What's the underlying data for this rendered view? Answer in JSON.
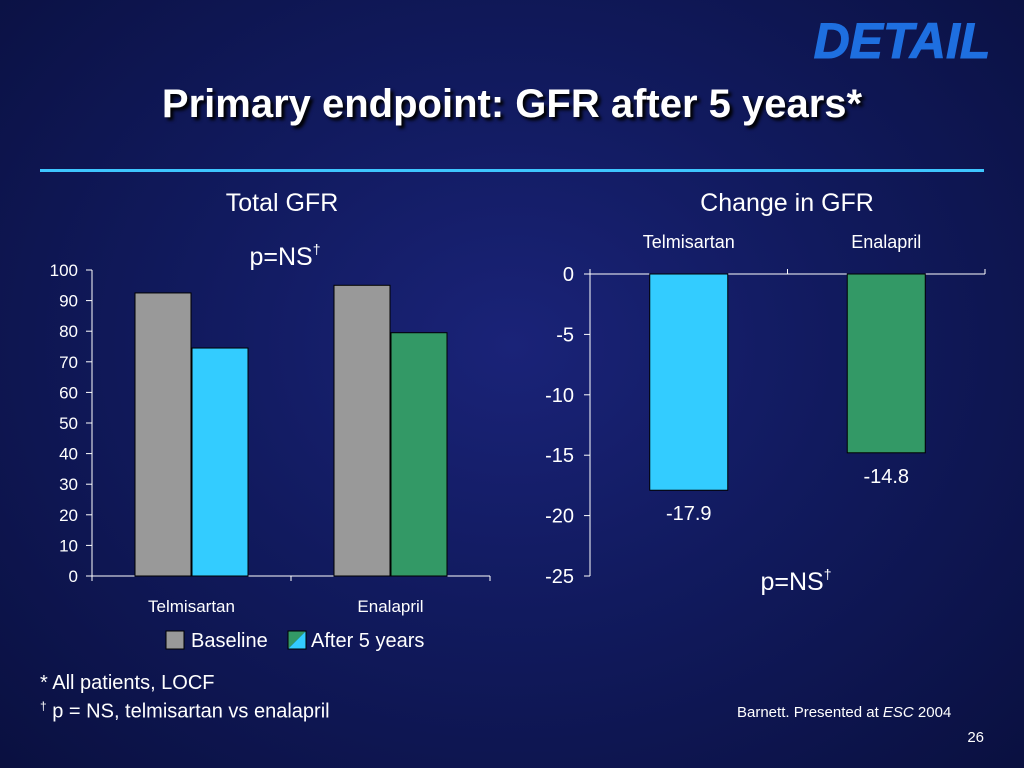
{
  "logo": {
    "text": "DETAIL"
  },
  "title": "Primary endpoint: GFR after 5 years*",
  "colors": {
    "baseline": "#999999",
    "telmisartan": "#33ccff",
    "enalapril": "#339966",
    "rule": "#3ec6ff"
  },
  "chart_data": [
    {
      "type": "bar",
      "title": "Total GFR",
      "annotation": "p=NS",
      "annotation_mark": "†",
      "categories": [
        "Telmisartan",
        "Enalapril"
      ],
      "series": [
        {
          "name": "Baseline",
          "values": [
            92.5,
            95
          ]
        },
        {
          "name": "After 5 years",
          "values": [
            74.5,
            79.5
          ]
        }
      ],
      "ylim": [
        0,
        100
      ],
      "yticks": [
        0,
        10,
        20,
        30,
        40,
        50,
        60,
        70,
        80,
        90,
        100
      ],
      "grid": false,
      "legend": "bottom"
    },
    {
      "type": "bar",
      "title": "Change in GFR",
      "annotation": "p=NS",
      "annotation_mark": "†",
      "categories": [
        "Telmisartan",
        "Enalapril"
      ],
      "values": [
        -17.9,
        -14.8
      ],
      "data_labels": [
        "-17.9",
        "-14.8"
      ],
      "ylim": [
        -25,
        0
      ],
      "yticks": [
        0,
        -5,
        -10,
        -15,
        -20,
        -25
      ],
      "category_labels_position": "top",
      "grid": false
    }
  ],
  "footnotes": {
    "line1": "* All patients, LOCF",
    "line2_mark": "†",
    "line2": " p = NS, telmisartan vs enalapril"
  },
  "citation": {
    "prefix": "Barnett. Presented at ",
    "italic": "ESC",
    "suffix": " 2004"
  },
  "page_number": "26"
}
